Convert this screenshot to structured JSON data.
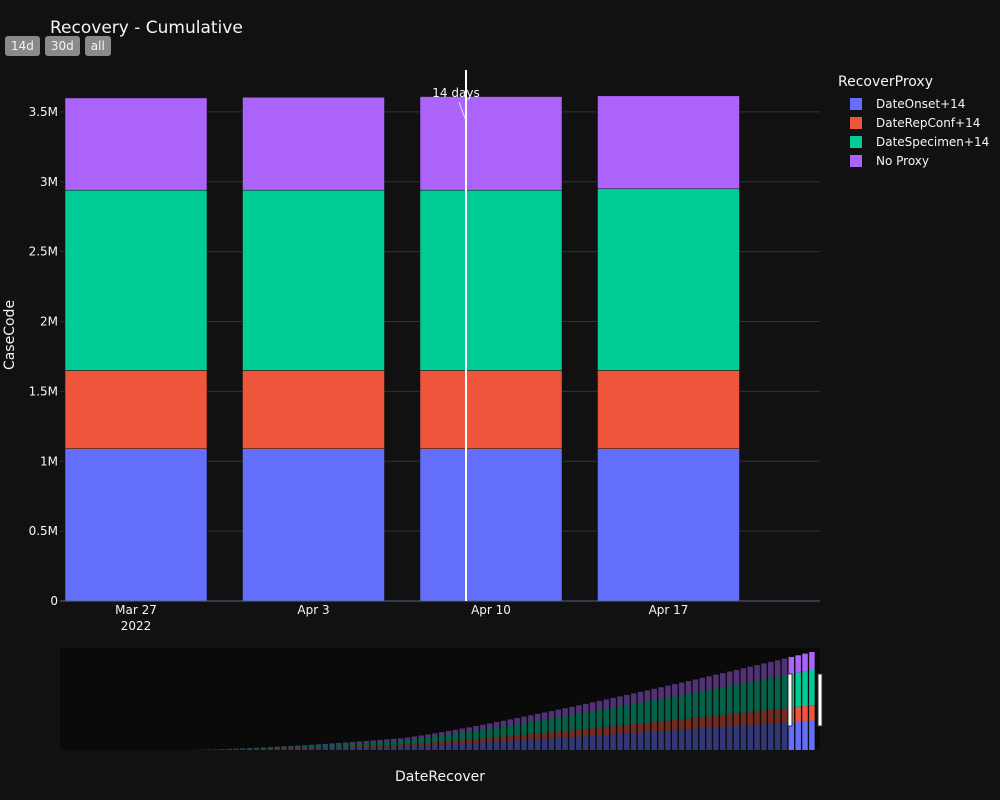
{
  "title": "Recovery - Cumulative",
  "range_buttons": [
    {
      "label": "14d"
    },
    {
      "label": "30d"
    },
    {
      "label": "all"
    }
  ],
  "legend": {
    "title": "RecoverProxy",
    "items": [
      {
        "name": "DateOnset+14",
        "color": "#636efa"
      },
      {
        "name": "DateRepConf+14",
        "color": "#ef553b"
      },
      {
        "name": "DateSpecimen+14",
        "color": "#00cc96"
      },
      {
        "name": "No Proxy",
        "color": "#ab63fa"
      }
    ]
  },
  "annotation": {
    "label": "14 days"
  },
  "chart_data": {
    "type": "bar",
    "stacked": true,
    "title": "Recovery - Cumulative",
    "xlabel": "DateRecover",
    "ylabel": "CaseCode",
    "x_tick_labels": [
      "Mar 27",
      "Apr 3",
      "Apr 10",
      "Apr 17"
    ],
    "x_tick_sublabel": "2022",
    "y_tick_labels": [
      "0",
      "0.5M",
      "1M",
      "1.5M",
      "2M",
      "2.5M",
      "3M",
      "3.5M"
    ],
    "y_ticks": [
      0,
      500000,
      1000000,
      1500000,
      2000000,
      2500000,
      3000000,
      3500000
    ],
    "ylim": [
      0,
      3800000
    ],
    "categories": [
      "2022-03-27",
      "2022-04-03",
      "2022-04-10",
      "2022-04-17"
    ],
    "series": [
      {
        "name": "DateOnset+14",
        "color": "#636efa",
        "values": [
          1090000,
          1090000,
          1090000,
          1090000
        ]
      },
      {
        "name": "DateRepConf+14",
        "color": "#ef553b",
        "values": [
          560000,
          560000,
          560000,
          560000
        ]
      },
      {
        "name": "DateSpecimen+14",
        "color": "#00cc96",
        "values": [
          1290000,
          1290000,
          1290000,
          1300000
        ]
      },
      {
        "name": "No Proxy",
        "color": "#ab63fa",
        "values": [
          660000,
          665000,
          670000,
          665000
        ]
      }
    ],
    "vline_label": "14 days",
    "grid": true,
    "legend_position": "right",
    "range_slider": true
  }
}
